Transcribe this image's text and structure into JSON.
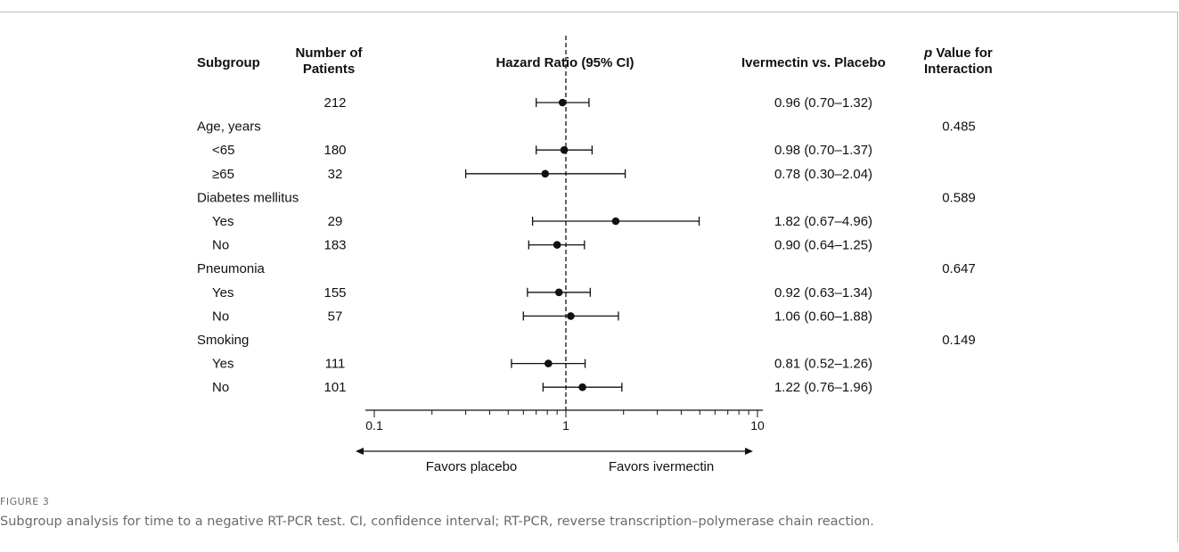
{
  "headers": {
    "subgroup": "Subgroup",
    "patients_line1": "Number of",
    "patients_line2": "Patients",
    "hr": "Hazard Ratio (95% CI)",
    "comparison": "Ivermectin vs. Placebo",
    "p_italic": "p",
    "p_line1_rest": " Value for",
    "p_line2": "Interaction"
  },
  "chart_data": {
    "type": "forest",
    "xscale": "log",
    "xlim": [
      0.1,
      10
    ],
    "ticks": [
      "0.1",
      "1",
      "10"
    ],
    "reference_line": 1,
    "rows": [
      {
        "label": "",
        "indent": false,
        "n": "212",
        "hr": 0.96,
        "lo": 0.7,
        "hi": 1.32,
        "text": "0.96 (0.70–1.32)",
        "p": ""
      },
      {
        "label": "Age, years",
        "indent": false,
        "n": "",
        "hr": null,
        "lo": null,
        "hi": null,
        "text": "",
        "p": "0.485"
      },
      {
        "label": "<65",
        "indent": true,
        "n": "180",
        "hr": 0.98,
        "lo": 0.7,
        "hi": 1.37,
        "text": "0.98 (0.70–1.37)",
        "p": ""
      },
      {
        "label": "≥65",
        "indent": true,
        "n": "32",
        "hr": 0.78,
        "lo": 0.3,
        "hi": 2.04,
        "text": "0.78 (0.30–2.04)",
        "p": ""
      },
      {
        "label": "Diabetes mellitus",
        "indent": false,
        "n": "",
        "hr": null,
        "lo": null,
        "hi": null,
        "text": "",
        "p": "0.589"
      },
      {
        "label": "Yes",
        "indent": true,
        "n": "29",
        "hr": 1.82,
        "lo": 0.67,
        "hi": 4.96,
        "text": "1.82 (0.67–4.96)",
        "p": ""
      },
      {
        "label": "No",
        "indent": true,
        "n": "183",
        "hr": 0.9,
        "lo": 0.64,
        "hi": 1.25,
        "text": "0.90 (0.64–1.25)",
        "p": ""
      },
      {
        "label": "Pneumonia",
        "indent": false,
        "n": "",
        "hr": null,
        "lo": null,
        "hi": null,
        "text": "",
        "p": "0.647"
      },
      {
        "label": "Yes",
        "indent": true,
        "n": "155",
        "hr": 0.92,
        "lo": 0.63,
        "hi": 1.34,
        "text": "0.92 (0.63–1.34)",
        "p": ""
      },
      {
        "label": "No",
        "indent": true,
        "n": "57",
        "hr": 1.06,
        "lo": 0.6,
        "hi": 1.88,
        "text": "1.06 (0.60–1.88)",
        "p": ""
      },
      {
        "label": "Smoking",
        "indent": false,
        "n": "",
        "hr": null,
        "lo": null,
        "hi": null,
        "text": "",
        "p": "0.149"
      },
      {
        "label": "Yes",
        "indent": true,
        "n": "111",
        "hr": 0.81,
        "lo": 0.52,
        "hi": 1.26,
        "text": "0.81 (0.52–1.26)",
        "p": ""
      },
      {
        "label": "No",
        "indent": true,
        "n": "101",
        "hr": 1.22,
        "lo": 0.76,
        "hi": 1.96,
        "text": "1.22 (0.76–1.96)",
        "p": ""
      }
    ],
    "favors_left": "Favors placebo",
    "favors_right": "Favors ivermectin"
  },
  "caption": {
    "label": "FIGURE 3",
    "text": "Subgroup analysis for time to a negative RT-PCR test. CI, confidence interval; RT-PCR, reverse transcription–polymerase chain reaction."
  }
}
